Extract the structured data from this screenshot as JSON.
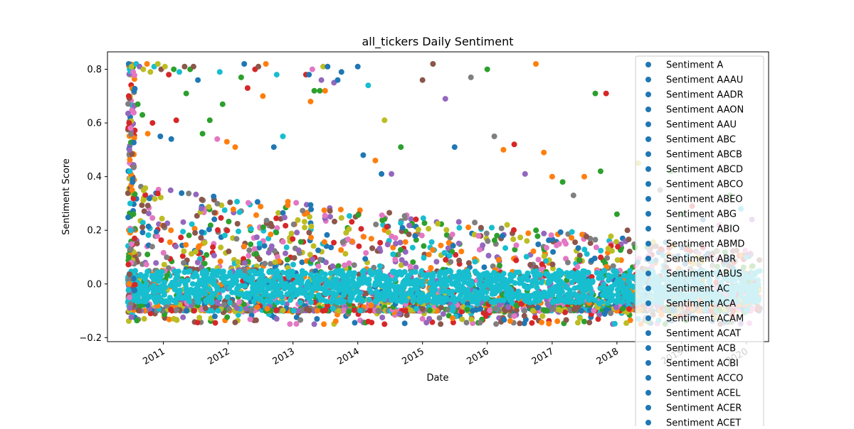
{
  "chart_data": {
    "type": "scatter",
    "title": "all_tickers Daily Sentiment",
    "xlabel": "Date",
    "ylabel": "Sentiment Score",
    "x_ticks": [
      "2011",
      "2012",
      "2013",
      "2014",
      "2015",
      "2016",
      "2017",
      "2018",
      "2019",
      "2020"
    ],
    "y_ticks": [
      "−0.2",
      "0.0",
      "0.2",
      "0.4",
      "0.6",
      "0.8"
    ],
    "xlim": [
      "2010-02-20",
      "2020-05-05"
    ],
    "ylim": [
      -0.215,
      0.865
    ],
    "grid": false,
    "legend_position": "upper right",
    "palette": [
      "#1f77b4",
      "#ff7f0e",
      "#2ca02c",
      "#d62728",
      "#9467bd",
      "#8c564b",
      "#e377c2",
      "#7f7f7f",
      "#bcbd22",
      "#17becf"
    ],
    "series": [
      {
        "name": "Sentiment A",
        "color": "#1f77b4"
      },
      {
        "name": "Sentiment AAAU",
        "color": "#1f77b4"
      },
      {
        "name": "Sentiment AADR",
        "color": "#1f77b4"
      },
      {
        "name": "Sentiment AAON",
        "color": "#1f77b4"
      },
      {
        "name": "Sentiment AAU",
        "color": "#1f77b4"
      },
      {
        "name": "Sentiment ABC",
        "color": "#1f77b4"
      },
      {
        "name": "Sentiment ABCB",
        "color": "#1f77b4"
      },
      {
        "name": "Sentiment ABCD",
        "color": "#1f77b4"
      },
      {
        "name": "Sentiment ABCO",
        "color": "#1f77b4"
      },
      {
        "name": "Sentiment ABEO",
        "color": "#1f77b4"
      },
      {
        "name": "Sentiment ABG",
        "color": "#1f77b4"
      },
      {
        "name": "Sentiment ABIO",
        "color": "#1f77b4"
      },
      {
        "name": "Sentiment ABMD",
        "color": "#1f77b4"
      },
      {
        "name": "Sentiment ABR",
        "color": "#1f77b4"
      },
      {
        "name": "Sentiment ABUS",
        "color": "#1f77b4"
      },
      {
        "name": "Sentiment AC",
        "color": "#1f77b4"
      },
      {
        "name": "Sentiment ACA",
        "color": "#1f77b4"
      },
      {
        "name": "Sentiment ACAM",
        "color": "#1f77b4"
      },
      {
        "name": "Sentiment ACAT",
        "color": "#1f77b4"
      },
      {
        "name": "Sentiment ACB",
        "color": "#1f77b4"
      },
      {
        "name": "Sentiment ACBI",
        "color": "#1f77b4"
      },
      {
        "name": "Sentiment ACCO",
        "color": "#1f77b4"
      },
      {
        "name": "Sentiment ACEL",
        "color": "#1f77b4"
      },
      {
        "name": "Sentiment ACER",
        "color": "#1f77b4"
      },
      {
        "name": "Sentiment ACET",
        "color": "#1f77b4"
      }
    ],
    "points": [
      [
        "2010-06-20",
        0.82,
        0
      ],
      [
        "2010-06-25",
        0.8,
        9
      ],
      [
        "2010-07-05",
        0.81,
        8
      ],
      [
        "2010-07-15",
        0.79,
        6
      ],
      [
        "2010-08-01",
        0.82,
        9
      ],
      [
        "2010-08-20",
        0.81,
        4
      ],
      [
        "2010-09-10",
        0.8,
        8
      ],
      [
        "2010-10-01",
        0.82,
        1
      ],
      [
        "2010-10-20",
        0.79,
        8
      ],
      [
        "2010-11-10",
        0.81,
        9
      ],
      [
        "2010-12-01",
        0.82,
        8
      ],
      [
        "2010-12-20",
        0.8,
        5
      ],
      [
        "2011-01-10",
        0.81,
        8
      ],
      [
        "2011-02-01",
        0.78,
        3
      ],
      [
        "2011-03-01",
        0.8,
        2
      ],
      [
        "2011-04-01",
        0.79,
        9
      ],
      [
        "2011-05-01",
        0.81,
        5
      ],
      [
        "2011-06-01",
        0.8,
        2
      ],
      [
        "2010-06-20",
        0.7,
        3
      ],
      [
        "2010-06-22",
        0.6,
        3
      ],
      [
        "2010-06-24",
        0.5,
        4
      ],
      [
        "2010-06-26",
        0.42,
        9
      ],
      [
        "2010-06-28",
        0.3,
        9
      ],
      [
        "2010-06-30",
        0.2,
        9
      ],
      [
        "2010-06-20",
        0.1,
        2
      ],
      [
        "2010-06-22",
        0.0,
        1
      ],
      [
        "2010-06-24",
        -0.05,
        6
      ],
      [
        "2010-06-26",
        -0.09,
        4
      ],
      [
        "2010-07-20",
        0.72,
        0
      ],
      [
        "2010-08-10",
        0.67,
        2
      ],
      [
        "2010-09-05",
        0.63,
        2
      ],
      [
        "2010-10-05",
        0.56,
        1
      ],
      [
        "2010-11-01",
        0.6,
        3
      ],
      [
        "2010-12-15",
        0.55,
        0
      ],
      [
        "2011-02-15",
        0.54,
        0
      ],
      [
        "2011-03-15",
        0.61,
        3
      ],
      [
        "2011-05-10",
        0.71,
        2
      ],
      [
        "2011-06-20",
        0.81,
        5
      ],
      [
        "2011-07-15",
        0.76,
        0
      ],
      [
        "2011-08-10",
        0.56,
        2
      ],
      [
        "2011-09-20",
        0.61,
        2
      ],
      [
        "2011-11-01",
        0.54,
        6
      ],
      [
        "2011-11-15",
        0.79,
        9
      ],
      [
        "2011-12-01",
        0.67,
        2
      ],
      [
        "2011-12-25",
        0.53,
        1
      ],
      [
        "2012-02-10",
        0.51,
        1
      ],
      [
        "2012-03-15",
        0.77,
        2
      ],
      [
        "2012-04-01",
        0.82,
        0
      ],
      [
        "2012-04-20",
        0.73,
        3
      ],
      [
        "2012-06-01",
        0.8,
        3
      ],
      [
        "2012-06-20",
        0.81,
        5
      ],
      [
        "2012-08-01",
        0.82,
        1
      ],
      [
        "2012-07-15",
        0.7,
        1
      ],
      [
        "2012-10-01",
        0.78,
        9
      ],
      [
        "2012-11-05",
        0.55,
        9
      ],
      [
        "2012-09-15",
        0.51,
        0
      ],
      [
        "2013-03-15",
        0.78,
        3
      ],
      [
        "2013-04-01",
        0.78,
        0
      ],
      [
        "2013-04-20",
        0.8,
        6
      ],
      [
        "2013-04-10",
        0.68,
        1
      ],
      [
        "2013-05-01",
        0.72,
        2
      ],
      [
        "2013-06-01",
        0.72,
        2
      ],
      [
        "2013-06-20",
        0.81,
        8
      ],
      [
        "2013-07-15",
        0.81,
        0
      ],
      [
        "2013-10-01",
        0.79,
        0
      ],
      [
        "2013-08-20",
        0.75,
        4
      ],
      [
        "2013-09-10",
        0.76,
        0
      ],
      [
        "2013-06-10",
        0.76,
        4
      ],
      [
        "2013-07-01",
        0.72,
        1
      ],
      [
        "2014-01-01",
        0.81,
        0
      ],
      [
        "2014-03-01",
        0.74,
        9
      ],
      [
        "2014-02-01",
        0.48,
        0
      ],
      [
        "2014-04-10",
        0.46,
        1
      ],
      [
        "2014-05-15",
        0.41,
        0
      ],
      [
        "2014-06-01",
        0.61,
        8
      ],
      [
        "2014-07-10",
        0.41,
        4
      ],
      [
        "2014-09-01",
        0.51,
        2
      ],
      [
        "2015-01-01",
        0.76,
        5
      ],
      [
        "2015-03-01",
        0.82,
        5
      ],
      [
        "2015-05-10",
        0.69,
        4
      ],
      [
        "2015-07-01",
        0.51,
        0
      ],
      [
        "2015-10-01",
        0.77,
        7
      ],
      [
        "2016-01-01",
        0.8,
        2
      ],
      [
        "2016-02-10",
        0.55,
        7
      ],
      [
        "2016-04-01",
        0.5,
        1
      ],
      [
        "2016-06-01",
        0.52,
        3
      ],
      [
        "2016-08-01",
        0.41,
        4
      ],
      [
        "2016-10-01",
        0.82,
        1
      ],
      [
        "2016-11-15",
        0.49,
        1
      ],
      [
        "2017-01-01",
        0.4,
        1
      ],
      [
        "2017-03-01",
        0.38,
        2
      ],
      [
        "2017-05-01",
        0.33,
        7
      ],
      [
        "2017-07-01",
        0.4,
        1
      ],
      [
        "2017-09-01",
        0.71,
        2
      ],
      [
        "2017-10-01",
        0.42,
        2
      ],
      [
        "2017-11-01",
        0.71,
        3
      ],
      [
        "2018-01-01",
        0.26,
        2
      ],
      [
        "2018-03-01",
        0.2,
        5
      ],
      [
        "2018-05-01",
        0.45,
        8
      ],
      [
        "2018-07-01",
        0.54,
        0
      ],
      [
        "2018-09-01",
        0.35,
        7
      ],
      [
        "2018-11-01",
        0.42,
        2
      ],
      [
        "2019-01-01",
        0.26,
        2
      ],
      [
        "2019-03-01",
        0.29,
        3
      ],
      [
        "2019-05-01",
        0.24,
        0
      ],
      [
        "2019-08-01",
        0.22,
        6
      ],
      [
        "2019-10-01",
        0.33,
        2
      ],
      [
        "2019-12-01",
        0.28,
        9
      ],
      [
        "2020-02-01",
        0.24,
        4
      ],
      [
        "2010-09-15",
        -0.13,
        8
      ],
      [
        "2011-03-01",
        -0.13,
        8
      ],
      [
        "2012-10-01",
        -0.13,
        4
      ],
      [
        "2013-05-01",
        -0.15,
        4
      ],
      [
        "2014-03-01",
        -0.14,
        3
      ],
      [
        "2014-06-01",
        -0.15,
        3
      ],
      [
        "2015-01-01",
        -0.13,
        6
      ],
      [
        "2016-06-01",
        -0.12,
        6
      ],
      [
        "2017-07-01",
        -0.14,
        2
      ],
      [
        "2018-05-01",
        -0.13,
        9
      ],
      [
        "2019-09-01",
        -0.14,
        0
      ]
    ]
  }
}
